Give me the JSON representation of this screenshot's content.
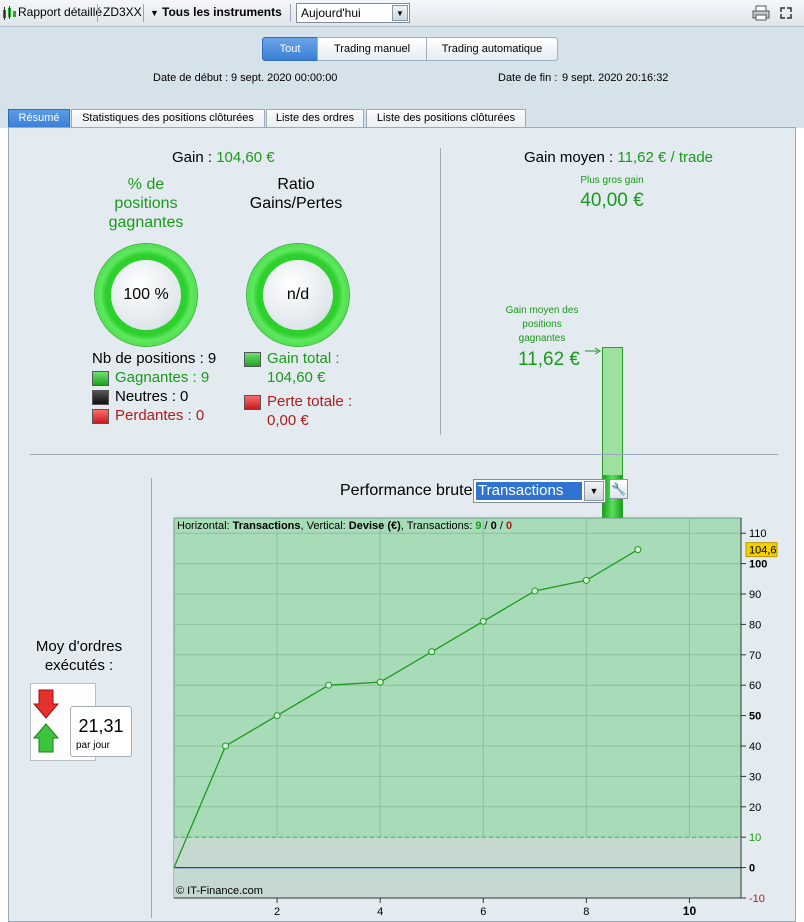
{
  "toolbar": {
    "report_label": "Rapport détaillé",
    "account": "ZD3XX",
    "instruments": "Tous les instruments",
    "period": "Aujourd'hui"
  },
  "modes": [
    "Tout",
    "Trading manuel",
    "Trading automatique"
  ],
  "dates": {
    "start_label": "Date de début :",
    "start_value": "9 sept. 2020 00:00:00",
    "end_label": "Date de fin :",
    "end_value": "9 sept. 2020 20:16:32"
  },
  "tabs": [
    "Résumé",
    "Statistiques des positions clôturées",
    "Liste des ordres",
    "Liste des positions clôturées"
  ],
  "summary": {
    "gain_label": "Gain :",
    "gain_value": "104,60 €",
    "win_pct_title_1": "% de",
    "win_pct_title_2": "positions",
    "win_pct_title_3": "gagnantes",
    "win_pct_value": "100 %",
    "ratio_title_1": "Ratio",
    "ratio_title_2": "Gains/Pertes",
    "ratio_value": "n/d",
    "nb_positions": "Nb de positions : 9",
    "winning": "Gagnantes : 9",
    "neutral": "Neutres : 0",
    "losing": "Perdantes : 0",
    "total_gain_label": "Gain total :",
    "total_gain_value": "104,60 €",
    "total_loss_label": "Perte totale :",
    "total_loss_value": "0,00 €"
  },
  "average": {
    "label": "Gain moyen :",
    "value": "11,62 € / trade",
    "biggest_label": "Plus gros gain",
    "biggest_value": "40,00 €",
    "avg_win_label_1": "Gain moyen des",
    "avg_win_label_2": "positions",
    "avg_win_label_3": "gagnantes",
    "avg_win_value": "11,62 €",
    "bar_fraction": 0.29
  },
  "orders": {
    "title_1": "Moy d'ordres",
    "title_2": "exécutés :",
    "value": "21,31",
    "unit": "par jour"
  },
  "performance": {
    "title": "Performance brute",
    "selector": "Transactions",
    "info_prefix": "Horizontal: ",
    "info_h": "Transactions",
    "info_mid": ", Vertical: ",
    "info_v": "Devise (€)",
    "info_tx": ", Transactions: ",
    "tx_win": "9",
    "tx_sep1": " / ",
    "tx_neutral": "0",
    "tx_sep2": " / ",
    "tx_loss": "0",
    "copyright": "© IT-Finance.com"
  },
  "colors": {
    "accent": "#3a7fd5",
    "win": "#1a9a1a",
    "loss": "#b01c1c",
    "plot_bg": "#a8dbb8",
    "line": "#1e9a1e",
    "last_value_badge": "#f5d000"
  },
  "chart_data": {
    "type": "line",
    "title": "Performance brute",
    "xlabel": "Transactions",
    "ylabel": "Devise (€)",
    "x": [
      0,
      1,
      2,
      3,
      4,
      5,
      6,
      7,
      8,
      9
    ],
    "y": [
      0,
      40,
      50,
      60,
      61,
      71,
      81,
      91,
      94.5,
      104.6
    ],
    "xlim": [
      0,
      11
    ],
    "ylim": [
      -10,
      115
    ],
    "x_ticks": [
      "2",
      "4",
      "6",
      "8",
      "10"
    ],
    "y_ticks": [
      "-10",
      "0",
      "10",
      "20",
      "30",
      "40",
      "50",
      "60",
      "70",
      "80",
      "90",
      "100",
      "110"
    ],
    "reference_line": 10,
    "last_value_label": "104,6",
    "grid": true
  }
}
